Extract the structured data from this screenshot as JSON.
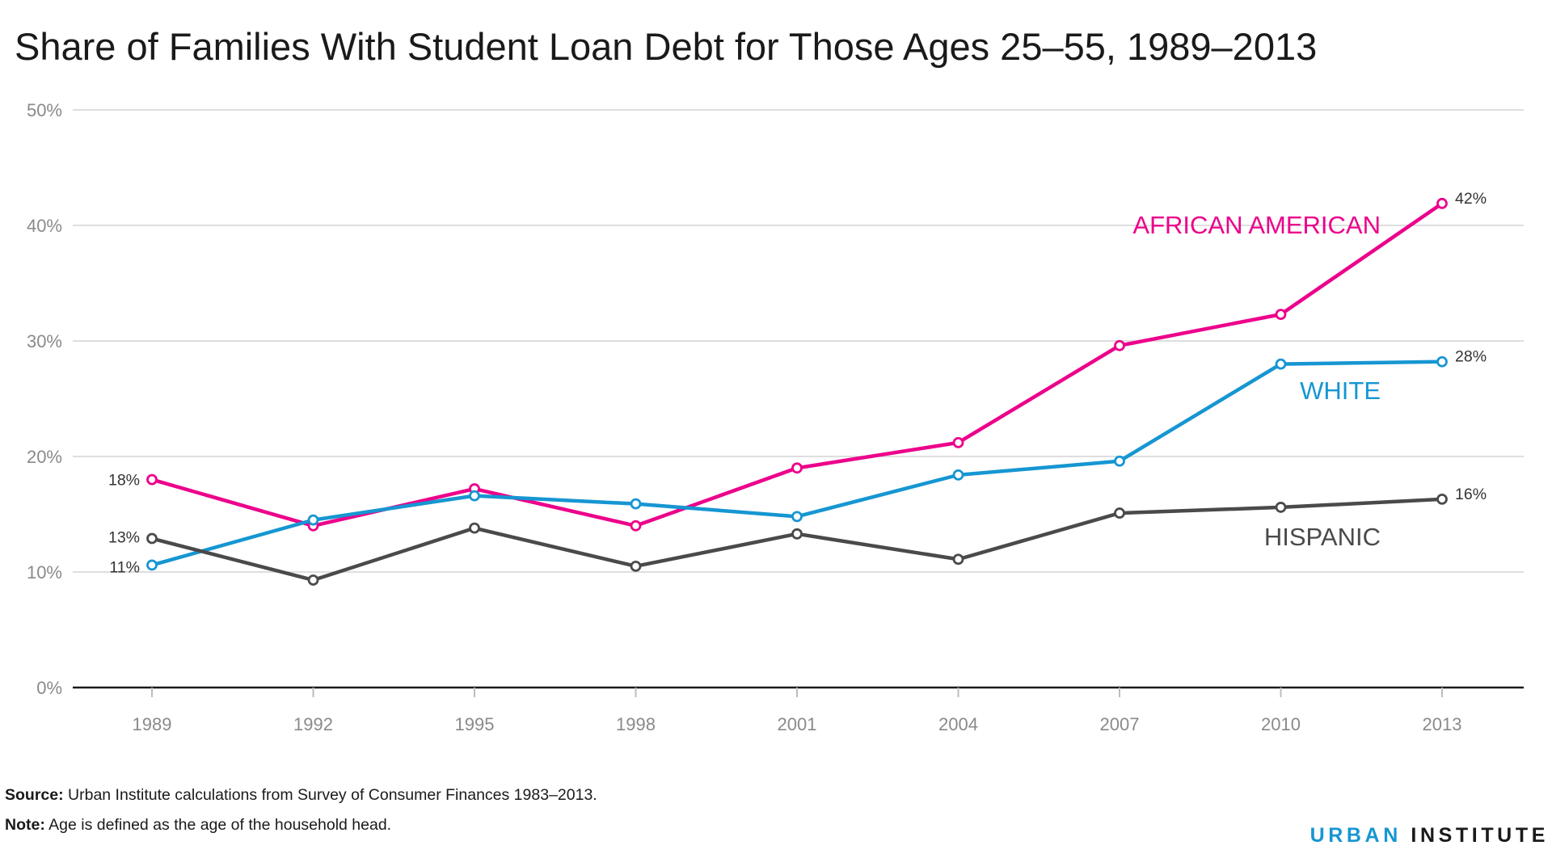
{
  "chart_data": {
    "type": "line",
    "title": "Share of Families With Student Loan Debt for Those Ages 25–55, 1989–2013",
    "xlabel": "",
    "ylabel": "",
    "categories": [
      "1989",
      "1992",
      "1995",
      "1998",
      "2001",
      "2004",
      "2007",
      "2010",
      "2013"
    ],
    "ylim": [
      0,
      50
    ],
    "yticks": [
      0,
      10,
      20,
      30,
      40,
      50
    ],
    "ytick_labels": [
      "0%",
      "10%",
      "20%",
      "30%",
      "40%",
      "50%"
    ],
    "grid": true,
    "legend": "direct labels",
    "series": [
      {
        "name": "AFRICAN AMERICAN",
        "color": "#ec008b",
        "values": [
          18.0,
          14.0,
          17.2,
          14.0,
          19.0,
          21.2,
          29.6,
          32.3,
          41.9
        ],
        "start_label": "18%",
        "end_label": "42%"
      },
      {
        "name": "WHITE",
        "color": "#1696d2",
        "values": [
          10.6,
          14.5,
          16.6,
          15.9,
          14.8,
          18.4,
          19.6,
          28.0,
          28.2
        ],
        "start_label": "11%",
        "end_label": "28%"
      },
      {
        "name": "HISPANIC",
        "color": "#4a4a4a",
        "values": [
          12.9,
          9.3,
          13.8,
          10.5,
          13.3,
          11.1,
          15.1,
          15.6,
          16.3
        ],
        "start_label": "13%",
        "end_label": "16%"
      }
    ]
  },
  "footer": {
    "source_label": "Source:",
    "source_text": "Urban Institute calculations from Survey of Consumer Finances 1983–2013.",
    "note_label": "Note:",
    "note_text": "Age is defined as the age of the household head.",
    "brand_part1": "URBAN",
    "brand_part2": "INSTITUTE"
  }
}
